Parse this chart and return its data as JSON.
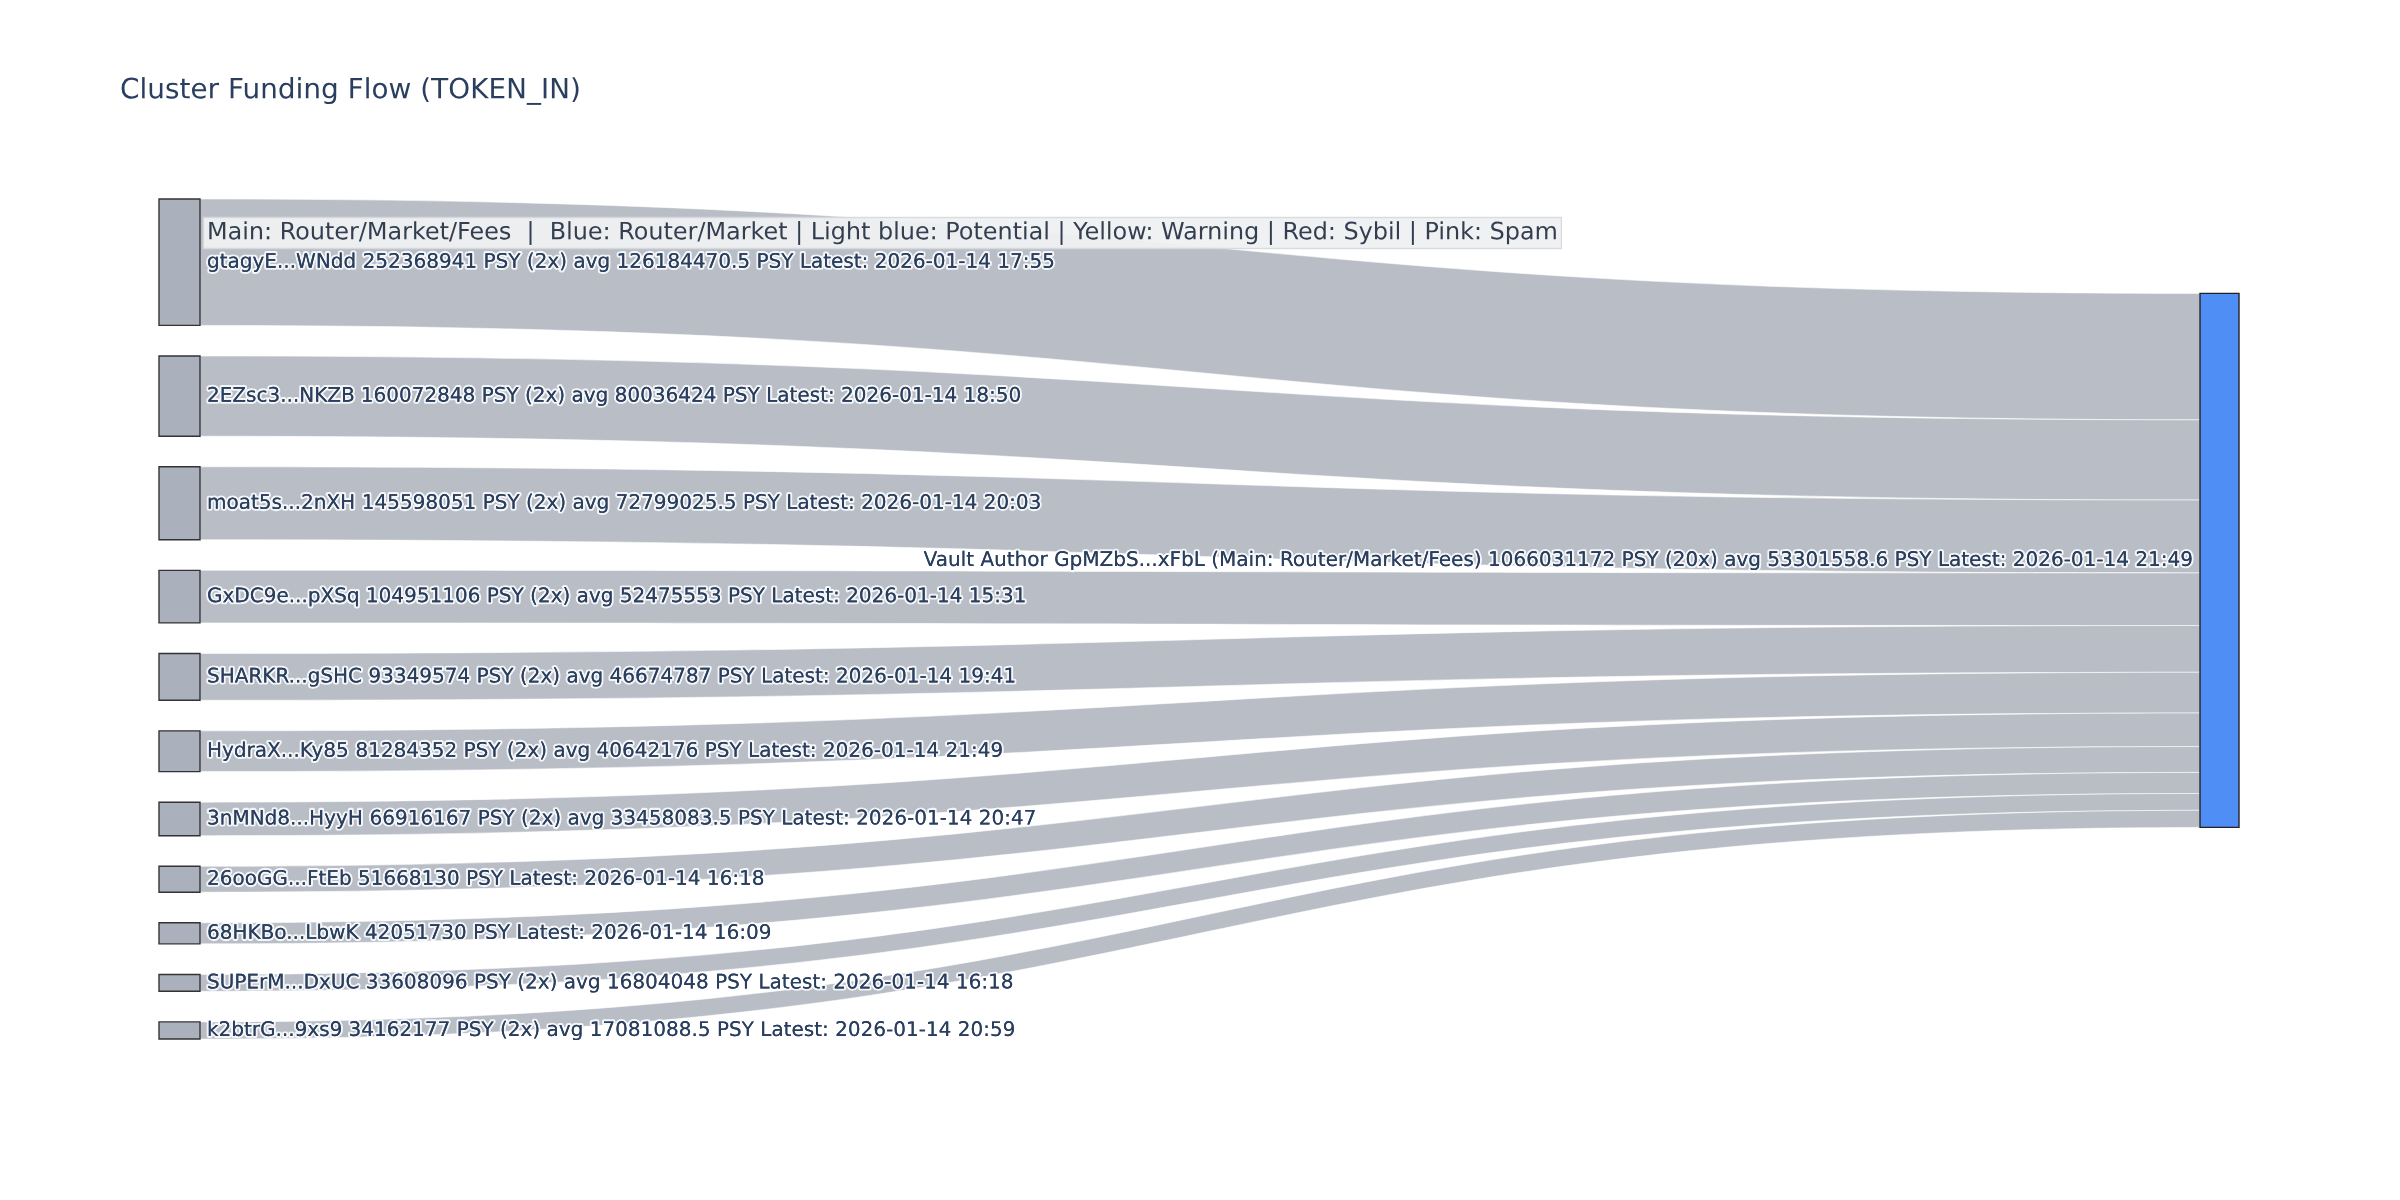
{
  "chart_data": {
    "type": "other",
    "title": "Cluster Funding Flow (TOKEN_IN)",
    "categories": [
      "gtagyE...WNdd",
      "2EZsc3...NKZB",
      "moat5s...2nXH",
      "GxDC9e...pXSq",
      "SHARKR...gSHC",
      "HydraX...Ky85",
      "3nMNd8...HyyH",
      "26ooGG...FtEb",
      "68HKBo...LbwK",
      "SUPErM...DxUC",
      "k2btrG...9xs9"
    ],
    "colors": [
      "#abb1bc",
      "#abb1bc",
      "#abb1bc",
      "#abb1bc",
      "#abb1bc",
      "#abb1bc",
      "#abb1bc",
      "#abb1bc",
      "#abb1bc",
      "#abb1bc",
      "#abb1bc",
      "#4f8ef5"
    ],
    "series": [
      {
        "name": "Vault Author GpMZbS...xFbL (Main: Router/Market/Fees) 1066031172 PSY (20x) avg 53301558.6 PSY Latest: 2026-01-14 21:49",
        "color": "#b9bdc6",
        "values": [
          252368941,
          160072848,
          145598051,
          104951106,
          93349574,
          81284352,
          66916167,
          51668130,
          42051730,
          33608096,
          34162177
        ],
        "value_labels": [
          "252368941 PSY (2x) avg 126184470.5 PSY Latest: 2026-01-14 17:55",
          "160072848 PSY (2x) avg 80036424 PSY Latest: 2026-01-14 18:50",
          "145598051 PSY (2x) avg 72799025.5 PSY Latest: 2026-01-14 20:03",
          "104951106 PSY (2x) avg 52475553 PSY Latest: 2026-01-14 15:31",
          "93349574 PSY (2x) avg 46674787 PSY Latest: 2026-01-14 19:41",
          "81284352 PSY (2x) avg 40642176 PSY Latest: 2026-01-14 21:49",
          "66916167 PSY (2x) avg 33458083.5 PSY Latest: 2026-01-14 20:47",
          "51668130 PSY Latest: 2026-01-14 16:18",
          "42051730 PSY Latest: 2026-01-14 16:09",
          "33608096 PSY (2x) avg 16804048 PSY Latest: 2026-01-14 16:18",
          "34162177 PSY (2x) avg 17081088.5 PSY Latest: 2026-01-14 20:59"
        ]
      }
    ],
    "annotations": [
      "Main: Router/Market/Fees  |  Blue: Router/Market | Light blue: Potential | Yellow: Warning | Red: Sybil | Pink: Spam"
    ]
  }
}
